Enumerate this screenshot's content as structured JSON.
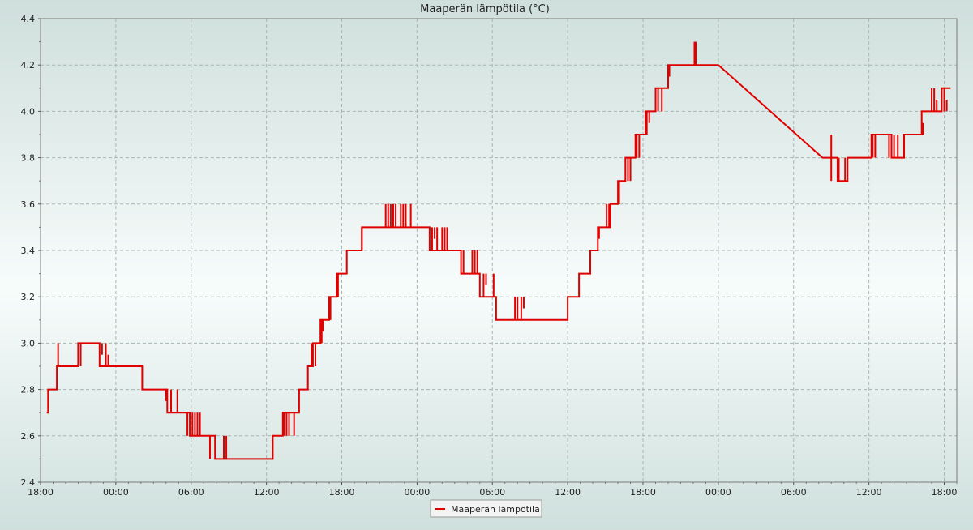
{
  "chart_data": {
    "type": "line",
    "title": "Maaperän lämpötila (°C)",
    "xlabel": "",
    "ylabel": "",
    "x_tick_labels": [
      "18:00",
      "00:00",
      "06:00",
      "12:00",
      "18:00",
      "00:00",
      "06:00",
      "12:00",
      "18:00",
      "00:00",
      "06:00",
      "12:00",
      "18:00"
    ],
    "y_ticks": [
      "2.4",
      "2.6",
      "2.8",
      "3.0",
      "3.2",
      "3.4",
      "3.6",
      "3.8",
      "4.0",
      "4.2",
      "4.4"
    ],
    "ylim": [
      2.4,
      4.4
    ],
    "xlim_hours": [
      0,
      73
    ],
    "grid": true,
    "legend_position": "bottom-center",
    "colors": {
      "series": "#e00000",
      "grid": "#a9b5b3"
    },
    "series": [
      {
        "name": "Maaperän lämpötila",
        "points": [
          [
            0.5,
            2.7
          ],
          [
            0.6,
            2.7
          ],
          [
            0.6,
            2.8
          ],
          [
            1.3,
            2.8
          ],
          [
            1.3,
            2.9
          ],
          [
            3.0,
            2.9
          ],
          [
            3.0,
            3.0
          ],
          [
            4.7,
            3.0
          ],
          [
            4.7,
            2.9
          ],
          [
            8.1,
            2.9
          ],
          [
            8.1,
            2.8
          ],
          [
            10.1,
            2.8
          ],
          [
            10.1,
            2.7
          ],
          [
            11.9,
            2.7
          ],
          [
            11.9,
            2.6
          ],
          [
            12.7,
            2.6
          ],
          [
            13.9,
            2.6
          ],
          [
            13.9,
            2.5
          ],
          [
            18.5,
            2.5
          ],
          [
            18.5,
            2.6
          ],
          [
            19.3,
            2.6
          ],
          [
            19.3,
            2.7
          ],
          [
            20.0,
            2.7
          ],
          [
            20.6,
            2.7
          ],
          [
            20.6,
            2.8
          ],
          [
            21.3,
            2.8
          ],
          [
            21.3,
            2.9
          ],
          [
            21.7,
            2.9
          ],
          [
            21.7,
            3.0
          ],
          [
            22.3,
            3.0
          ],
          [
            22.3,
            3.1
          ],
          [
            23.0,
            3.1
          ],
          [
            23.0,
            3.2
          ],
          [
            23.6,
            3.2
          ],
          [
            23.6,
            3.3
          ],
          [
            24.4,
            3.3
          ],
          [
            24.4,
            3.4
          ],
          [
            25.6,
            3.4
          ],
          [
            25.6,
            3.5
          ],
          [
            27.5,
            3.5
          ],
          [
            27.8,
            3.5
          ],
          [
            31.0,
            3.5
          ],
          [
            31.0,
            3.4
          ],
          [
            33.5,
            3.4
          ],
          [
            33.5,
            3.3
          ],
          [
            35.0,
            3.3
          ],
          [
            35.0,
            3.2
          ],
          [
            36.3,
            3.2
          ],
          [
            36.3,
            3.1
          ],
          [
            42.0,
            3.1
          ],
          [
            42.0,
            3.2
          ],
          [
            42.9,
            3.2
          ],
          [
            42.9,
            3.3
          ],
          [
            43.8,
            3.3
          ],
          [
            43.8,
            3.4
          ],
          [
            44.4,
            3.4
          ],
          [
            44.4,
            3.5
          ],
          [
            45.4,
            3.5
          ],
          [
            45.4,
            3.6
          ],
          [
            46.0,
            3.6
          ],
          [
            46.0,
            3.7
          ],
          [
            46.6,
            3.7
          ],
          [
            46.6,
            3.8
          ],
          [
            47.4,
            3.8
          ],
          [
            47.4,
            3.9
          ],
          [
            48.2,
            3.9
          ],
          [
            48.2,
            4.0
          ],
          [
            49.0,
            4.0
          ],
          [
            49.0,
            4.1
          ],
          [
            50.0,
            4.1
          ],
          [
            50.0,
            4.2
          ],
          [
            54.0,
            4.2
          ],
          [
            62.3,
            3.8
          ],
          [
            63.5,
            3.8
          ],
          [
            63.5,
            3.7
          ],
          [
            64.3,
            3.7
          ],
          [
            64.3,
            3.8
          ],
          [
            66.2,
            3.8
          ],
          [
            66.2,
            3.9
          ],
          [
            67.8,
            3.9
          ],
          [
            67.8,
            3.8
          ],
          [
            68.8,
            3.8
          ],
          [
            68.8,
            3.9
          ],
          [
            70.2,
            3.9
          ],
          [
            70.2,
            4.0
          ],
          [
            71.8,
            4.0
          ],
          [
            71.8,
            4.1
          ],
          [
            72.5,
            4.1
          ]
        ],
        "spikes": [
          [
            1.4,
            3.0,
            2.9
          ],
          [
            3.2,
            2.9,
            3.0
          ],
          [
            4.9,
            2.95,
            3.0
          ],
          [
            5.2,
            2.9,
            3.0
          ],
          [
            5.4,
            2.9,
            2.95
          ],
          [
            10.0,
            2.8,
            2.75
          ],
          [
            10.4,
            2.7,
            2.8
          ],
          [
            10.9,
            2.7,
            2.8
          ],
          [
            11.7,
            2.6,
            2.7
          ],
          [
            11.9,
            2.6,
            2.7
          ],
          [
            12.1,
            2.6,
            2.7
          ],
          [
            12.3,
            2.6,
            2.7
          ],
          [
            12.5,
            2.6,
            2.7
          ],
          [
            12.7,
            2.6,
            2.7
          ],
          [
            13.5,
            2.6,
            2.5
          ],
          [
            14.6,
            2.5,
            2.6
          ],
          [
            14.8,
            2.5,
            2.6
          ],
          [
            19.4,
            2.6,
            2.7
          ],
          [
            19.6,
            2.6,
            2.7
          ],
          [
            19.8,
            2.6,
            2.7
          ],
          [
            20.2,
            2.7,
            2.6
          ],
          [
            21.6,
            2.9,
            3.0
          ],
          [
            21.9,
            2.9,
            3.0
          ],
          [
            22.4,
            3.0,
            3.1
          ],
          [
            22.5,
            3.05,
            3.1
          ],
          [
            23.1,
            3.1,
            3.2
          ],
          [
            23.7,
            3.2,
            3.3
          ],
          [
            25.6,
            3.4,
            3.5
          ],
          [
            27.5,
            3.5,
            3.6
          ],
          [
            27.7,
            3.5,
            3.6
          ],
          [
            27.9,
            3.5,
            3.6
          ],
          [
            28.1,
            3.5,
            3.6
          ],
          [
            28.3,
            3.5,
            3.6
          ],
          [
            28.7,
            3.5,
            3.6
          ],
          [
            28.9,
            3.5,
            3.6
          ],
          [
            29.1,
            3.5,
            3.6
          ],
          [
            29.5,
            3.5,
            3.6
          ],
          [
            31.2,
            3.4,
            3.5
          ],
          [
            31.4,
            3.45,
            3.5
          ],
          [
            31.6,
            3.4,
            3.5
          ],
          [
            32.0,
            3.4,
            3.5
          ],
          [
            32.2,
            3.4,
            3.5
          ],
          [
            32.4,
            3.4,
            3.5
          ],
          [
            33.7,
            3.3,
            3.4
          ],
          [
            34.4,
            3.3,
            3.4
          ],
          [
            34.6,
            3.3,
            3.4
          ],
          [
            34.8,
            3.3,
            3.4
          ],
          [
            35.3,
            3.2,
            3.3
          ],
          [
            35.5,
            3.25,
            3.3
          ],
          [
            36.1,
            3.2,
            3.3
          ],
          [
            37.8,
            3.1,
            3.2
          ],
          [
            38.0,
            3.1,
            3.2
          ],
          [
            38.3,
            3.1,
            3.2
          ],
          [
            38.5,
            3.15,
            3.2
          ],
          [
            44.5,
            3.45,
            3.5
          ],
          [
            45.1,
            3.5,
            3.6
          ],
          [
            45.3,
            3.5,
            3.6
          ],
          [
            46.1,
            3.6,
            3.7
          ],
          [
            46.8,
            3.7,
            3.8
          ],
          [
            47.0,
            3.7,
            3.8
          ],
          [
            47.5,
            3.8,
            3.9
          ],
          [
            47.7,
            3.8,
            3.9
          ],
          [
            48.3,
            3.9,
            4.0
          ],
          [
            48.5,
            3.95,
            4.0
          ],
          [
            49.2,
            4.0,
            4.1
          ],
          [
            49.5,
            4.0,
            4.1
          ],
          [
            50.1,
            4.15,
            4.2
          ],
          [
            52.1,
            4.2,
            4.3
          ],
          [
            52.2,
            4.2,
            4.3
          ],
          [
            63.0,
            3.7,
            3.9
          ],
          [
            63.6,
            3.8,
            3.7
          ],
          [
            64.1,
            3.7,
            3.8
          ],
          [
            66.3,
            3.8,
            3.9
          ],
          [
            66.5,
            3.8,
            3.9
          ],
          [
            67.6,
            3.9,
            3.8
          ],
          [
            68.0,
            3.8,
            3.9
          ],
          [
            68.3,
            3.8,
            3.9
          ],
          [
            70.3,
            3.9,
            3.95
          ],
          [
            71.0,
            4.0,
            4.1
          ],
          [
            71.2,
            4.0,
            4.1
          ],
          [
            71.4,
            4.0,
            4.05
          ],
          [
            72.0,
            4.0,
            4.1
          ],
          [
            72.2,
            4.0,
            4.05
          ]
        ]
      }
    ]
  }
}
